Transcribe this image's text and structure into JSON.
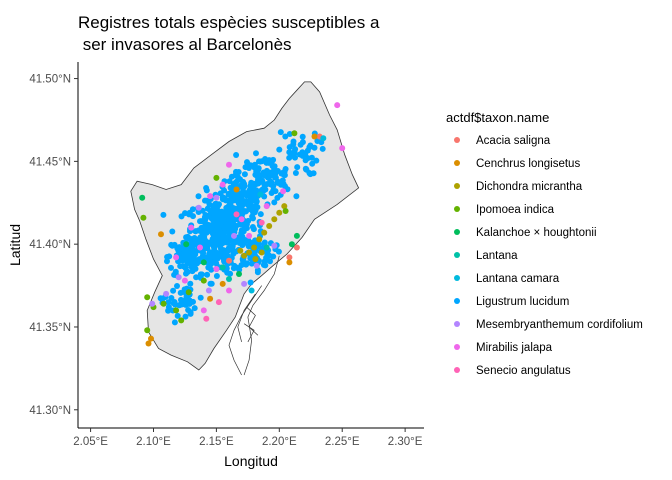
{
  "title": [
    "Registres totals espècies susceptibles a",
    " ser invasores al Barcelonès"
  ],
  "x_axis": {
    "label": "Longitud",
    "range": [
      2.04,
      2.315
    ],
    "ticks": [
      2.05,
      2.1,
      2.15,
      2.2,
      2.25,
      2.3
    ],
    "tick_labels": [
      "2.05°E",
      "2.10°E",
      "2.15°E",
      "2.20°E",
      "2.25°E",
      "2.30°E"
    ]
  },
  "y_axis": {
    "label": "Latitud",
    "range": [
      41.289,
      41.51
    ],
    "ticks": [
      41.3,
      41.35,
      41.4,
      41.45,
      41.5
    ],
    "tick_labels": [
      "41.30°N",
      "41.35°N",
      "41.40°N",
      "41.45°N",
      "41.50°N"
    ]
  },
  "legend": {
    "title": "actdf$taxon.name",
    "position": "right",
    "items": [
      {
        "name": "Acacia saligna",
        "color": "#F8766D"
      },
      {
        "name": "Cenchrus longisetus",
        "color": "#DB8E00"
      },
      {
        "name": "Dichondra micrantha",
        "color": "#AEA200"
      },
      {
        "name": "Ipomoea indica",
        "color": "#64B200"
      },
      {
        "name": "Kalanchoe × houghtonii",
        "color": "#00BD5C"
      },
      {
        "name": "Lantana",
        "color": "#00C1A7"
      },
      {
        "name": "Lantana camara",
        "color": "#00BADE"
      },
      {
        "name": "Ligustrum lucidum",
        "color": "#00A6FF"
      },
      {
        "name": "Mesembryanthemum cordifolium",
        "color": "#B385FF"
      },
      {
        "name": "Mirabilis jalapa",
        "color": "#EF67EB"
      },
      {
        "name": "Senecio angulatus",
        "color": "#FF63B6"
      }
    ]
  },
  "map": {
    "region_fill": "#e5e5e5",
    "region_stroke": "#333333",
    "outline": [
      [
        2.225,
        41.498
      ],
      [
        2.232,
        41.492
      ],
      [
        2.24,
        41.478
      ],
      [
        2.246,
        41.469
      ],
      [
        2.252,
        41.454
      ],
      [
        2.258,
        41.442
      ],
      [
        2.263,
        41.434
      ],
      [
        2.246,
        41.424
      ],
      [
        2.228,
        41.415
      ],
      [
        2.218,
        41.404
      ],
      [
        2.206,
        41.394
      ],
      [
        2.195,
        41.387
      ],
      [
        2.186,
        41.381
      ],
      [
        2.178,
        41.376
      ],
      [
        2.172,
        41.37
      ],
      [
        2.168,
        41.362
      ],
      [
        2.165,
        41.356
      ],
      [
        2.158,
        41.348
      ],
      [
        2.148,
        41.337
      ],
      [
        2.141,
        41.328
      ],
      [
        2.136,
        41.324
      ],
      [
        2.127,
        41.329
      ],
      [
        2.114,
        41.333
      ],
      [
        2.104,
        41.337
      ],
      [
        2.096,
        41.347
      ],
      [
        2.095,
        41.36
      ],
      [
        2.101,
        41.371
      ],
      [
        2.107,
        41.381
      ],
      [
        2.1,
        41.391
      ],
      [
        2.094,
        41.403
      ],
      [
        2.089,
        41.414
      ],
      [
        2.085,
        41.421
      ],
      [
        2.082,
        41.432
      ],
      [
        2.087,
        41.438
      ],
      [
        2.099,
        41.436
      ],
      [
        2.11,
        41.433
      ],
      [
        2.122,
        41.436
      ],
      [
        2.132,
        41.446
      ],
      [
        2.146,
        41.454
      ],
      [
        2.16,
        41.462
      ],
      [
        2.174,
        41.468
      ],
      [
        2.188,
        41.47
      ],
      [
        2.196,
        41.475
      ],
      [
        2.202,
        41.482
      ],
      [
        2.208,
        41.488
      ],
      [
        2.214,
        41.493
      ],
      [
        2.22,
        41.498
      ]
    ],
    "port_lines": [
      [
        [
          2.2,
          41.393
        ],
        [
          2.196,
          41.382
        ],
        [
          2.188,
          41.372
        ],
        [
          2.179,
          41.363
        ],
        [
          2.175,
          41.356
        ],
        [
          2.178,
          41.342
        ],
        [
          2.176,
          41.33
        ],
        [
          2.172,
          41.321
        ]
      ],
      [
        [
          2.186,
          41.375
        ],
        [
          2.178,
          41.366
        ],
        [
          2.17,
          41.357
        ],
        [
          2.164,
          41.348
        ],
        [
          2.16,
          41.339
        ],
        [
          2.164,
          41.33
        ],
        [
          2.17,
          41.321
        ]
      ],
      [
        [
          2.181,
          41.37
        ],
        [
          2.172,
          41.36
        ],
        [
          2.167,
          41.35
        ],
        [
          2.17,
          41.341
        ]
      ],
      [
        [
          2.174,
          41.362
        ],
        [
          2.181,
          41.357
        ],
        [
          2.176,
          41.35
        ],
        [
          2.183,
          41.345
        ]
      ],
      [
        [
          2.172,
          41.352
        ],
        [
          2.18,
          41.348
        ],
        [
          2.175,
          41.341
        ]
      ]
    ]
  },
  "chart_data": {
    "type": "scatter",
    "title": "Registres totals espècies susceptibles a ser invasores al Barcelonès",
    "xlabel": "Longitud",
    "ylabel": "Latitud",
    "xlim": [
      2.04,
      2.315
    ],
    "ylim": [
      41.289,
      41.51
    ],
    "grid": false,
    "legend_title": "actdf$taxon.name",
    "series": [
      {
        "name": "Acacia saligna",
        "color": "#F8766D",
        "points": [
          [
            2.232,
            41.465
          ],
          [
            2.214,
            41.398
          ],
          [
            2.208,
            41.392
          ],
          [
            2.16,
            41.39
          ]
        ]
      },
      {
        "name": "Cenchrus longisetus",
        "color": "#DB8E00",
        "points": [
          [
            2.096,
            41.34
          ],
          [
            2.098,
            41.343
          ],
          [
            2.106,
            41.406
          ],
          [
            2.228,
            41.465
          ],
          [
            2.208,
            41.389
          ],
          [
            2.145,
            41.367
          ],
          [
            2.155,
            41.376
          ],
          [
            2.166,
            41.433
          ]
        ]
      },
      {
        "name": "Dichondra micrantha",
        "color": "#AEA200",
        "points": [
          [
            2.176,
            41.395
          ],
          [
            2.18,
            41.398
          ],
          [
            2.184,
            41.403
          ],
          [
            2.188,
            41.407
          ],
          [
            2.192,
            41.411
          ],
          [
            2.196,
            41.415
          ],
          [
            2.2,
            41.419
          ],
          [
            2.204,
            41.423
          ],
          [
            2.181,
            41.391
          ],
          [
            2.186,
            41.395
          ],
          [
            2.172,
            41.393
          ],
          [
            2.169,
            41.396
          ]
        ]
      },
      {
        "name": "Ipomoea indica",
        "color": "#64B200",
        "points": [
          [
            2.092,
            41.416
          ],
          [
            2.095,
            41.368
          ],
          [
            2.1,
            41.362
          ],
          [
            2.108,
            41.364
          ],
          [
            2.118,
            41.36
          ],
          [
            2.122,
            41.354
          ],
          [
            2.095,
            41.348
          ],
          [
            2.212,
            41.467
          ],
          [
            2.205,
            41.42
          ],
          [
            2.15,
            41.44
          ],
          [
            2.14,
            41.378
          ],
          [
            2.128,
            41.371
          ]
        ]
      },
      {
        "name": "Kalanchoe × houghtonii",
        "color": "#00BD5C",
        "points": [
          [
            2.091,
            41.428
          ],
          [
            2.214,
            41.405
          ],
          [
            2.21,
            41.4
          ],
          [
            2.168,
            41.382
          ],
          [
            2.14,
            41.389
          ],
          [
            2.126,
            41.4
          ]
        ]
      },
      {
        "name": "Lantana",
        "color": "#00C1A7",
        "points": [
          [
            2.155,
            41.386
          ],
          [
            2.16,
            41.379
          ],
          [
            2.19,
            41.398
          ]
        ]
      },
      {
        "name": "Lantana camara",
        "color": "#00BADE",
        "points": [
          [
            2.235,
            41.464
          ],
          [
            2.178,
            41.372
          ],
          [
            2.15,
            41.385
          ],
          [
            2.185,
            41.43
          ]
        ]
      },
      {
        "name": "Ligustrum lucidum",
        "color": "#00A6FF",
        "clusters": [
          {
            "center": [
              2.15,
              41.405
            ],
            "spread": [
              0.022,
              0.02
            ],
            "count": 320
          },
          {
            "center": [
              2.17,
              41.425
            ],
            "spread": [
              0.018,
              0.016
            ],
            "count": 180
          },
          {
            "center": [
              2.19,
              41.44
            ],
            "spread": [
              0.018,
              0.012
            ],
            "count": 90
          },
          {
            "center": [
              2.128,
              41.392
            ],
            "spread": [
              0.015,
              0.012
            ],
            "count": 90
          },
          {
            "center": [
              2.18,
              41.395
            ],
            "spread": [
              0.015,
              0.01
            ],
            "count": 80
          },
          {
            "center": [
              2.215,
              41.455
            ],
            "spread": [
              0.015,
              0.012
            ],
            "count": 40
          },
          {
            "center": [
              2.12,
              41.365
            ],
            "spread": [
              0.012,
              0.01
            ],
            "count": 40
          }
        ]
      },
      {
        "name": "Mesembryanthemum cordifolium",
        "color": "#B385FF",
        "points": [
          [
            2.099,
            41.364
          ],
          [
            2.11,
            41.37
          ],
          [
            2.182,
            41.387
          ],
          [
            2.196,
            41.399
          ],
          [
            2.15,
            41.428
          ],
          [
            2.136,
            41.422
          ],
          [
            2.164,
            41.405
          ],
          [
            2.12,
            41.38
          ],
          [
            2.172,
            41.376
          ],
          [
            2.144,
            41.372
          ]
        ]
      },
      {
        "name": "Mirabilis jalapa",
        "color": "#EF67EB",
        "points": [
          [
            2.246,
            41.484
          ],
          [
            2.25,
            41.458
          ],
          [
            2.16,
            41.448
          ],
          [
            2.155,
            41.436
          ],
          [
            2.145,
            41.429
          ],
          [
            2.17,
            41.415
          ],
          [
            2.13,
            41.41
          ],
          [
            2.15,
            41.385
          ],
          [
            2.16,
            41.372
          ],
          [
            2.14,
            41.36
          ],
          [
            2.125,
            41.378
          ],
          [
            2.176,
            41.405
          ],
          [
            2.118,
            41.392
          ],
          [
            2.137,
            41.398
          ],
          [
            2.19,
            41.423
          ],
          [
            2.203,
            41.432
          ]
        ]
      },
      {
        "name": "Senecio angulatus",
        "color": "#FF63B6",
        "points": [
          [
            2.152,
            41.365
          ],
          [
            2.166,
            41.418
          ],
          [
            2.186,
            41.413
          ],
          [
            2.142,
            41.355
          ]
        ]
      }
    ]
  }
}
